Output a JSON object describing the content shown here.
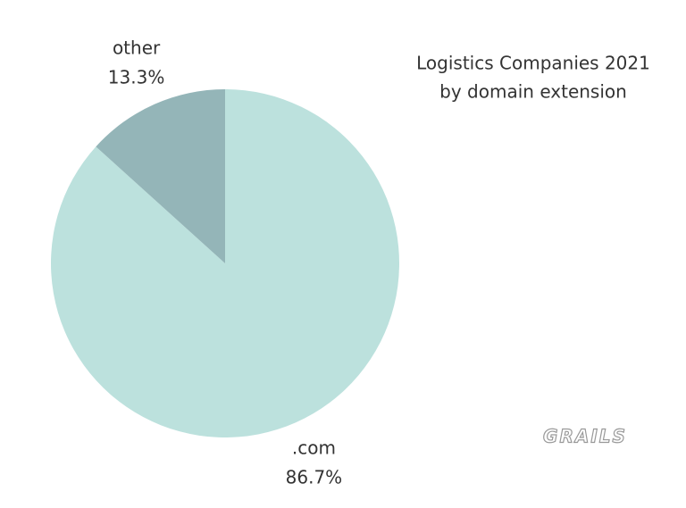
{
  "chart_data": {
    "type": "pie",
    "title": "Logistics Companies 2021",
    "subtitle": "by domain extension",
    "categories": [
      ".com",
      "other"
    ],
    "values": [
      86.7,
      13.3
    ],
    "value_labels": [
      "86.7%",
      "13.3%"
    ],
    "colors": [
      "#bce1dd",
      "#94b5b8"
    ],
    "watermark": "GRAILS"
  }
}
